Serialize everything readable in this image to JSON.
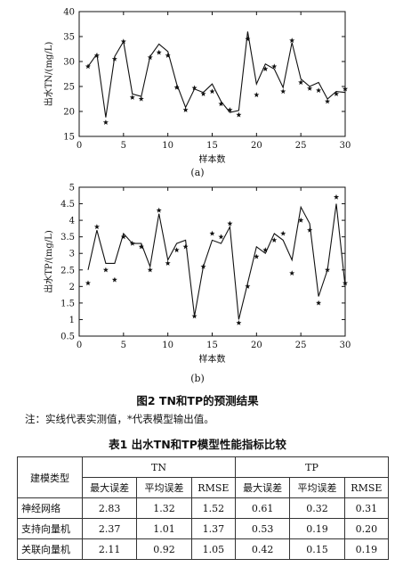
{
  "chart_data": [
    {
      "type": "line",
      "ylabel": "出水TN/(mg/L)",
      "xlabel": "样本数",
      "sublabel": "(a)",
      "ylim": [
        15,
        40
      ],
      "xlim": [
        0,
        30
      ],
      "yticks": [
        15,
        20,
        25,
        30,
        35,
        40
      ],
      "xticks": [
        0,
        5,
        10,
        15,
        20,
        25,
        30
      ],
      "series": [
        {
          "marker": "line",
          "x": [
            1,
            2,
            3,
            4,
            5,
            6,
            7,
            8,
            9,
            10,
            11,
            12,
            13,
            14,
            15,
            16,
            17,
            18,
            19,
            20,
            21,
            22,
            23,
            24,
            25,
            26,
            27,
            28,
            29,
            30
          ],
          "values": [
            29.0,
            31.5,
            18.8,
            31.0,
            34.0,
            23.5,
            23.0,
            31.0,
            33.5,
            32.0,
            25.5,
            20.8,
            24.5,
            23.8,
            25.5,
            22.0,
            19.8,
            20.2,
            36.0,
            25.5,
            29.5,
            28.5,
            24.8,
            33.8,
            26.5,
            25.0,
            25.8,
            22.5,
            24.0,
            23.8
          ]
        },
        {
          "marker": "star",
          "x": [
            1,
            2,
            3,
            4,
            5,
            6,
            7,
            8,
            9,
            10,
            11,
            12,
            13,
            14,
            15,
            16,
            17,
            18,
            19,
            20,
            21,
            22,
            23,
            24,
            25,
            26,
            27,
            28,
            29,
            30
          ],
          "values": [
            29.0,
            31.2,
            17.8,
            30.5,
            34.0,
            22.8,
            22.5,
            30.8,
            31.8,
            31.2,
            24.8,
            20.3,
            24.7,
            23.5,
            24.0,
            21.5,
            20.3,
            19.3,
            34.5,
            23.3,
            28.5,
            29.0,
            24.0,
            34.2,
            25.8,
            24.6,
            24.2,
            22.0,
            23.5,
            24.5
          ]
        }
      ]
    },
    {
      "type": "line",
      "ylabel": "出水TP/(mg/L)",
      "xlabel": "样本数",
      "sublabel": "(b)",
      "ylim": [
        0.5,
        5
      ],
      "xlim": [
        0,
        30
      ],
      "yticks": [
        0.5,
        1.0,
        1.5,
        2.0,
        2.5,
        3.0,
        3.5,
        4.0,
        4.5,
        5.0
      ],
      "ytick_labels": [
        "0.5",
        "1",
        "1.5",
        "2",
        "2.5",
        "3",
        "3.5",
        "4",
        "4.5",
        "5"
      ],
      "xticks": [
        0,
        5,
        10,
        15,
        20,
        25,
        30
      ],
      "series": [
        {
          "marker": "line",
          "x": [
            1,
            2,
            3,
            4,
            5,
            6,
            7,
            8,
            9,
            10,
            11,
            12,
            13,
            14,
            15,
            16,
            17,
            18,
            19,
            20,
            21,
            22,
            23,
            24,
            25,
            26,
            27,
            28,
            29,
            30
          ],
          "values": [
            2.5,
            3.7,
            2.7,
            2.7,
            3.6,
            3.3,
            3.3,
            2.6,
            4.2,
            2.8,
            3.3,
            3.4,
            1.1,
            2.6,
            3.4,
            3.3,
            3.8,
            1.0,
            2.1,
            3.2,
            3.0,
            3.6,
            3.4,
            2.8,
            4.4,
            3.9,
            1.7,
            2.5,
            4.5,
            2.0
          ]
        },
        {
          "marker": "star",
          "x": [
            1,
            2,
            3,
            4,
            5,
            6,
            7,
            8,
            9,
            10,
            11,
            12,
            13,
            14,
            15,
            16,
            17,
            18,
            19,
            20,
            21,
            22,
            23,
            24,
            25,
            26,
            27,
            28,
            29,
            30
          ],
          "values": [
            2.1,
            3.8,
            2.5,
            2.2,
            3.5,
            3.3,
            3.2,
            2.5,
            4.3,
            2.7,
            3.1,
            3.2,
            1.1,
            2.6,
            3.6,
            3.5,
            3.9,
            0.9,
            2.0,
            2.9,
            3.1,
            3.4,
            3.6,
            2.4,
            4.0,
            3.7,
            1.5,
            2.5,
            4.7,
            2.1
          ]
        }
      ]
    }
  ],
  "figure_caption": "图2    TN和TP的预测结果",
  "note": "注：实线代表实测值，*代表模型输出值。",
  "table": {
    "title": "表1    出水TN和TP模型性能指标比较",
    "corner": "建模类型",
    "groups": [
      "TN",
      "TP"
    ],
    "metrics": [
      "最大误差",
      "平均误差",
      "RMSE",
      "最大误差",
      "平均误差",
      "RMSE"
    ],
    "rows": [
      {
        "name": "神经网络",
        "values": [
          "2.83",
          "1.32",
          "1.52",
          "0.61",
          "0.32",
          "0.31"
        ]
      },
      {
        "name": "支持向量机",
        "values": [
          "2.37",
          "1.01",
          "1.37",
          "0.53",
          "0.19",
          "0.20"
        ]
      },
      {
        "name": "关联向量机",
        "values": [
          "2.11",
          "0.92",
          "1.05",
          "0.42",
          "0.15",
          "0.19"
        ]
      }
    ]
  }
}
